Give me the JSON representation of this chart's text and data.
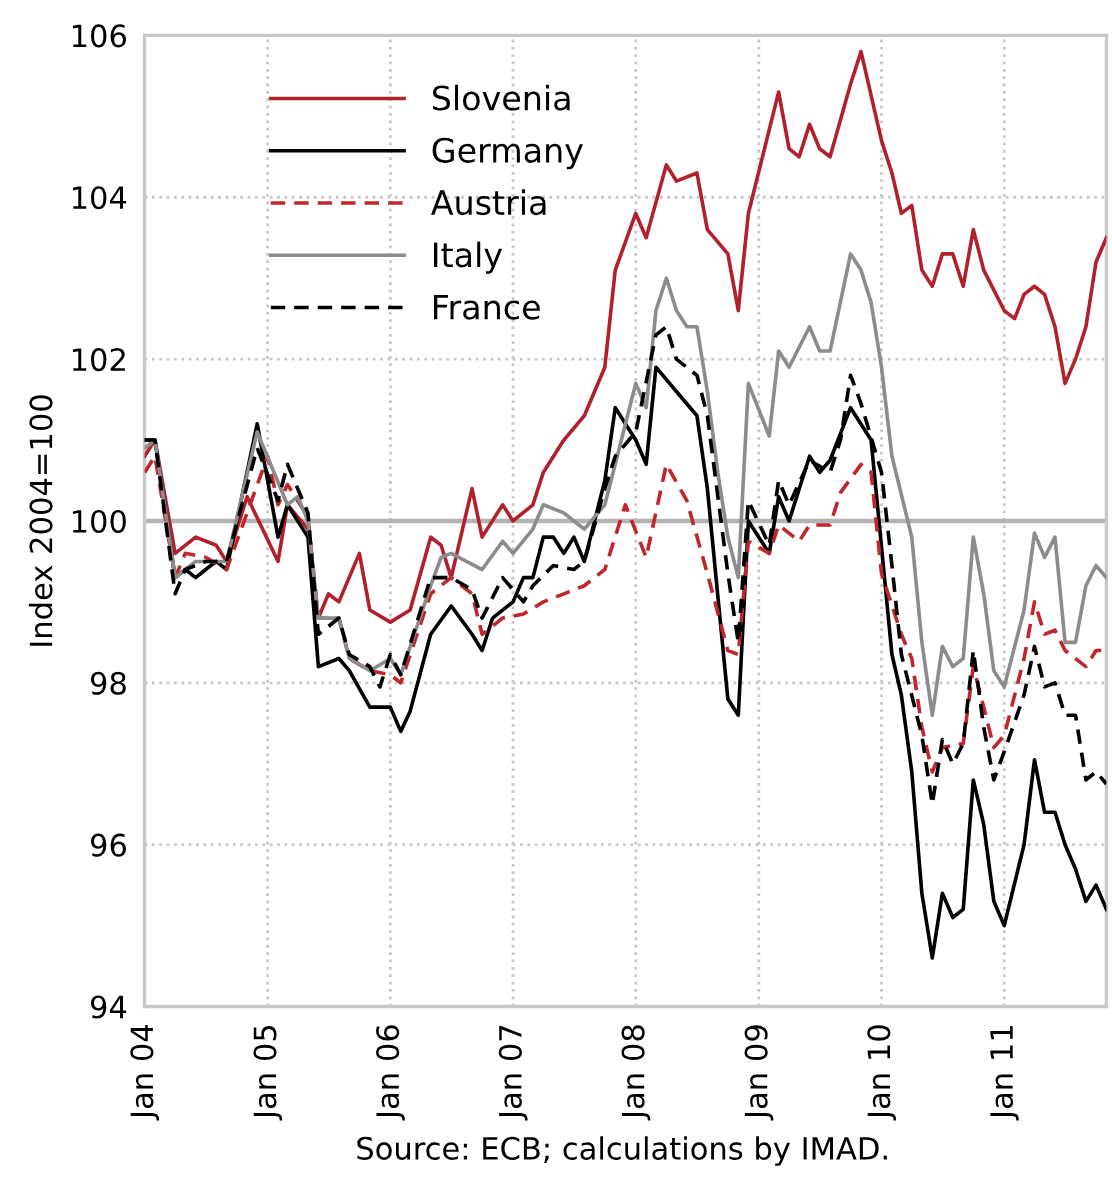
{
  "chart_data": {
    "type": "line",
    "ylabel": "Index 2004=100",
    "annotations": [
      "Source: ECB; calculations by IMAD."
    ],
    "xlim": [
      "2004-01",
      "2011-11"
    ],
    "xticks": [
      {
        "value": "2004-01",
        "label": "Jan 04"
      },
      {
        "value": "2005-01",
        "label": "Jan 05"
      },
      {
        "value": "2006-01",
        "label": "Jan 06"
      },
      {
        "value": "2007-01",
        "label": "Jan 07"
      },
      {
        "value": "2008-01",
        "label": "Jan 08"
      },
      {
        "value": "2009-01",
        "label": "Jan 09"
      },
      {
        "value": "2010-01",
        "label": "Jan 10"
      },
      {
        "value": "2011-01",
        "label": "Jan 11"
      }
    ],
    "ylim": [
      94,
      106
    ],
    "yticks": [
      94,
      96,
      98,
      100,
      102,
      104,
      106
    ],
    "grid": true,
    "legend": "top left",
    "ref_lines": [
      {
        "axis": "y",
        "value": 100,
        "color": "#b4b4b4",
        "line_style": "solid"
      }
    ],
    "series": [
      {
        "name": "Slovenia",
        "color": "#b2202e",
        "line_style": "solid",
        "x": [
          "2004-01",
          "2004-02",
          "2004-04",
          "2004-06",
          "2004-08",
          "2004-09",
          "2004-11",
          "2005-02",
          "2005-03",
          "2005-05",
          "2005-06",
          "2005-07",
          "2005-08",
          "2005-10",
          "2005-11",
          "2006-01",
          "2006-03",
          "2006-05",
          "2006-06",
          "2006-07",
          "2006-09",
          "2006-10",
          "2006-12",
          "2007-01",
          "2007-03",
          "2007-04",
          "2007-06",
          "2007-08",
          "2007-10",
          "2007-11",
          "2008-01",
          "2008-02",
          "2008-04",
          "2008-05",
          "2008-07",
          "2008-08",
          "2008-10",
          "2008-11",
          "2008-12",
          "2009-03",
          "2009-04",
          "2009-05",
          "2009-06",
          "2009-07",
          "2009-08",
          "2009-10",
          "2009-11",
          "2010-01",
          "2010-02",
          "2010-03",
          "2010-04",
          "2010-05",
          "2010-06",
          "2010-07",
          "2010-08",
          "2010-09",
          "2010-10",
          "2010-11",
          "2011-01",
          "2011-02",
          "2011-03",
          "2011-04",
          "2011-05",
          "2011-06",
          "2011-07",
          "2011-08",
          "2011-09",
          "2011-10",
          "2011-11"
        ],
        "values": [
          100.8,
          101.0,
          99.6,
          99.8,
          99.7,
          99.5,
          100.3,
          99.5,
          100.2,
          99.9,
          98.8,
          99.1,
          99.0,
          99.6,
          98.9,
          98.75,
          98.9,
          99.8,
          99.7,
          99.3,
          100.4,
          99.8,
          100.2,
          100.0,
          100.2,
          100.6,
          101.0,
          101.3,
          101.9,
          103.1,
          103.8,
          103.5,
          104.4,
          104.2,
          104.3,
          103.6,
          103.3,
          102.6,
          103.8,
          105.3,
          104.6,
          104.5,
          104.9,
          104.6,
          104.5,
          105.4,
          105.8,
          104.7,
          104.3,
          103.8,
          103.9,
          103.1,
          102.9,
          103.3,
          103.3,
          102.9,
          103.6,
          103.1,
          102.6,
          102.5,
          102.8,
          102.9,
          102.8,
          102.4,
          101.7,
          102.0,
          102.4,
          103.2,
          103.5
        ]
      },
      {
        "name": "Germany",
        "color": "#000000",
        "line_style": "solid",
        "x": [
          "2004-01",
          "2004-02",
          "2004-04",
          "2004-05",
          "2004-06",
          "2004-07",
          "2004-08",
          "2004-09",
          "2004-12",
          "2005-02",
          "2005-03",
          "2005-05",
          "2005-06",
          "2005-08",
          "2005-09",
          "2005-11",
          "2006-01",
          "2006-02",
          "2006-03",
          "2006-05",
          "2006-07",
          "2006-09",
          "2006-10",
          "2006-11",
          "2007-01",
          "2007-02",
          "2007-03",
          "2007-04",
          "2007-05",
          "2007-06",
          "2007-07",
          "2007-08",
          "2007-10",
          "2007-11",
          "2008-01",
          "2008-02",
          "2008-03",
          "2008-05",
          "2008-07",
          "2008-08",
          "2008-10",
          "2008-11",
          "2008-12",
          "2009-02",
          "2009-03",
          "2009-04",
          "2009-06",
          "2009-07",
          "2009-08",
          "2009-10",
          "2009-12",
          "2010-02",
          "2010-03",
          "2010-04",
          "2010-05",
          "2010-06",
          "2010-07",
          "2010-08",
          "2010-09",
          "2010-10",
          "2010-11",
          "2010-12",
          "2011-01",
          "2011-03",
          "2011-04",
          "2011-05",
          "2011-06",
          "2011-07",
          "2011-08",
          "2011-09",
          "2011-10",
          "2011-11"
        ],
        "values": [
          101.0,
          101.0,
          99.3,
          99.4,
          99.3,
          99.4,
          99.5,
          99.4,
          101.2,
          99.8,
          100.2,
          99.8,
          98.2,
          98.3,
          98.15,
          97.7,
          97.7,
          97.4,
          97.65,
          98.6,
          98.95,
          98.6,
          98.4,
          98.8,
          99.0,
          99.3,
          99.3,
          99.8,
          99.8,
          99.6,
          99.8,
          99.5,
          100.5,
          101.4,
          101.0,
          100.7,
          101.9,
          101.6,
          101.3,
          100.4,
          97.8,
          97.6,
          100.0,
          99.6,
          100.3,
          100.0,
          100.8,
          100.6,
          100.75,
          101.4,
          101.0,
          98.35,
          97.85,
          96.9,
          95.4,
          94.6,
          95.4,
          95.1,
          95.2,
          96.8,
          96.25,
          95.3,
          95.0,
          96.0,
          97.05,
          96.4,
          96.4,
          96.0,
          95.7,
          95.3,
          95.5,
          95.2
        ]
      },
      {
        "name": "Austria",
        "color": "#c0272d",
        "line_style": "dashed",
        "x": [
          "2004-01",
          "2004-02",
          "2004-04",
          "2004-05",
          "2004-07",
          "2004-09",
          "2004-11",
          "2005-01",
          "2005-02",
          "2005-03",
          "2005-05",
          "2005-06",
          "2005-08",
          "2005-09",
          "2005-11",
          "2006-01",
          "2006-02",
          "2006-05",
          "2006-07",
          "2006-09",
          "2006-10",
          "2006-12",
          "2007-02",
          "2007-04",
          "2007-06",
          "2007-07",
          "2007-08",
          "2007-10",
          "2007-12",
          "2008-02",
          "2008-04",
          "2008-06",
          "2008-08",
          "2008-10",
          "2008-11",
          "2008-12",
          "2009-02",
          "2009-03",
          "2009-05",
          "2009-06",
          "2009-08",
          "2009-09",
          "2009-11",
          "2009-12",
          "2010-01",
          "2010-03",
          "2010-04",
          "2010-05",
          "2010-06",
          "2010-07",
          "2010-09",
          "2010-10",
          "2010-11",
          "2010-12",
          "2011-01",
          "2011-03",
          "2011-04",
          "2011-05",
          "2011-06",
          "2011-07",
          "2011-09",
          "2011-10",
          "2011-11"
        ],
        "values": [
          100.6,
          100.8,
          99.3,
          99.6,
          99.55,
          99.4,
          100.1,
          100.8,
          100.2,
          100.45,
          100.05,
          98.8,
          98.8,
          98.3,
          98.15,
          98.1,
          98.0,
          99.1,
          99.3,
          99.1,
          98.6,
          98.8,
          98.85,
          99.0,
          99.1,
          99.15,
          99.2,
          99.4,
          100.2,
          99.55,
          100.7,
          100.25,
          99.35,
          98.4,
          98.35,
          99.75,
          99.6,
          99.95,
          99.75,
          99.95,
          99.95,
          100.35,
          100.7,
          100.6,
          99.35,
          98.6,
          98.3,
          97.45,
          96.9,
          97.2,
          97.25,
          98.2,
          97.7,
          97.2,
          97.35,
          98.3,
          99.0,
          98.6,
          98.65,
          98.4,
          98.2,
          98.4,
          98.4
        ]
      },
      {
        "name": "Italy",
        "color": "#8c8c8c",
        "line_style": "solid",
        "x": [
          "2004-01",
          "2004-02",
          "2004-04",
          "2004-06",
          "2004-07",
          "2004-09",
          "2004-12",
          "2005-03",
          "2005-04",
          "2005-05",
          "2005-06",
          "2005-08",
          "2005-09",
          "2005-11",
          "2006-01",
          "2006-02",
          "2006-05",
          "2006-06",
          "2006-07",
          "2006-10",
          "2006-12",
          "2007-01",
          "2007-03",
          "2007-04",
          "2007-06",
          "2007-07",
          "2007-08",
          "2007-10",
          "2007-11",
          "2008-01",
          "2008-02",
          "2008-03",
          "2008-04",
          "2008-05",
          "2008-06",
          "2008-07",
          "2008-08",
          "2008-09",
          "2008-10",
          "2008-11",
          "2008-12",
          "2009-02",
          "2009-03",
          "2009-04",
          "2009-06",
          "2009-07",
          "2009-08",
          "2009-10",
          "2009-11",
          "2009-12",
          "2010-01",
          "2010-02",
          "2010-04",
          "2010-05",
          "2010-06",
          "2010-07",
          "2010-08",
          "2010-09",
          "2010-10",
          "2010-11",
          "2010-12",
          "2011-01",
          "2011-03",
          "2011-04",
          "2011-05",
          "2011-06",
          "2011-07",
          "2011-08",
          "2011-09",
          "2011-10",
          "2011-11"
        ],
        "values": [
          100.9,
          101.0,
          99.3,
          99.5,
          99.5,
          99.5,
          101.1,
          100.2,
          100.3,
          100.0,
          98.8,
          98.8,
          98.3,
          98.15,
          98.3,
          98.1,
          99.2,
          99.55,
          99.6,
          99.4,
          99.75,
          99.6,
          99.9,
          100.2,
          100.1,
          100.0,
          99.9,
          100.2,
          100.7,
          101.7,
          101.4,
          102.6,
          103.0,
          102.6,
          102.4,
          102.4,
          101.6,
          100.6,
          99.8,
          99.3,
          101.7,
          101.05,
          102.1,
          101.9,
          102.4,
          102.1,
          102.1,
          103.3,
          103.1,
          102.7,
          101.9,
          100.8,
          99.8,
          98.5,
          97.6,
          98.45,
          98.2,
          98.3,
          99.8,
          99.1,
          98.15,
          97.95,
          98.9,
          99.85,
          99.55,
          99.8,
          98.5,
          98.5,
          99.2,
          99.45,
          99.3
        ]
      },
      {
        "name": "France",
        "color": "#000000",
        "line_style": "dashed",
        "x": [
          "2004-01",
          "2004-02",
          "2004-04",
          "2004-05",
          "2004-07",
          "2004-09",
          "2004-12",
          "2005-02",
          "2005-03",
          "2005-05",
          "2005-06",
          "2005-08",
          "2005-09",
          "2005-11",
          "2005-12",
          "2006-01",
          "2006-02",
          "2006-05",
          "2006-07",
          "2006-09",
          "2006-10",
          "2006-12",
          "2007-02",
          "2007-03",
          "2007-05",
          "2007-07",
          "2007-08",
          "2007-10",
          "2007-11",
          "2008-01",
          "2008-03",
          "2008-04",
          "2008-05",
          "2008-07",
          "2008-08",
          "2008-10",
          "2008-11",
          "2008-12",
          "2009-02",
          "2009-03",
          "2009-04",
          "2009-06",
          "2009-08",
          "2009-09",
          "2009-10",
          "2009-11",
          "2010-01",
          "2010-02",
          "2010-03",
          "2010-05",
          "2010-06",
          "2010-07",
          "2010-08",
          "2010-09",
          "2010-10",
          "2010-11",
          "2010-12",
          "2011-01",
          "2011-03",
          "2011-04",
          "2011-05",
          "2011-06",
          "2011-07",
          "2011-08",
          "2011-09",
          "2011-10",
          "2011-11"
        ],
        "values": [
          101.0,
          101.0,
          99.1,
          99.4,
          99.5,
          99.5,
          100.9,
          100.25,
          100.7,
          100.1,
          98.6,
          98.8,
          98.35,
          98.2,
          97.95,
          98.35,
          98.1,
          99.3,
          99.3,
          99.15,
          98.8,
          99.3,
          99.0,
          99.2,
          99.45,
          99.4,
          99.5,
          100.4,
          100.8,
          101.1,
          102.3,
          102.4,
          102.0,
          101.8,
          101.3,
          99.35,
          98.5,
          100.25,
          99.7,
          100.5,
          100.2,
          100.75,
          100.6,
          101.0,
          101.8,
          101.45,
          100.6,
          99.45,
          98.35,
          97.35,
          96.5,
          97.3,
          97.0,
          97.25,
          98.4,
          97.45,
          96.8,
          97.15,
          97.85,
          98.45,
          97.95,
          98.0,
          97.6,
          97.6,
          96.8,
          96.9,
          96.75
        ]
      }
    ]
  }
}
